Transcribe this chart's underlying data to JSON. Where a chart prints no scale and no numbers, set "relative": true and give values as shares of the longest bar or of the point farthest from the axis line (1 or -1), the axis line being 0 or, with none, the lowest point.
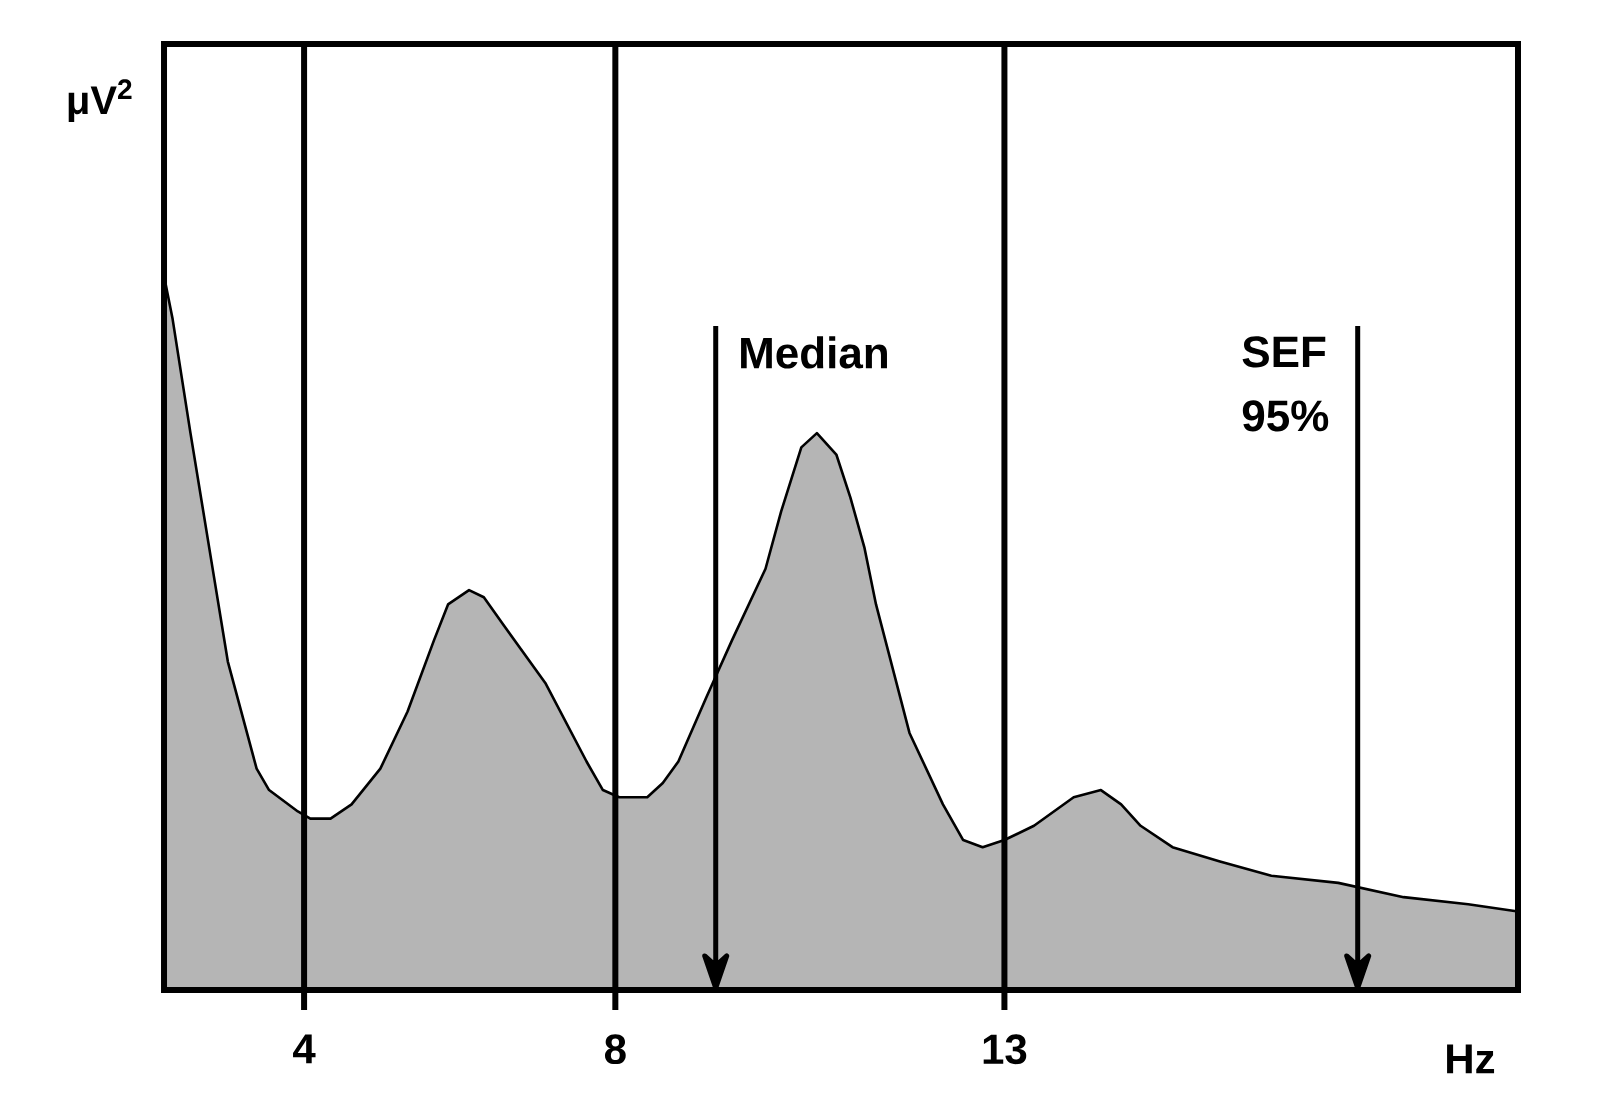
{
  "chart_data": {
    "type": "area",
    "relative": true,
    "xlabel": "Hz",
    "ylabel": "μV$^{2}$",
    "x": [
      2.2,
      2.31,
      2.54,
      2.81,
      3.02,
      3.39,
      3.55,
      3.92,
      4.08,
      4.34,
      4.61,
      4.98,
      5.33,
      5.67,
      5.85,
      6.12,
      6.31,
      6.57,
      7.1,
      7.63,
      7.84,
      8.05,
      8.41,
      8.61,
      8.81,
      9.17,
      9.5,
      9.93,
      10.13,
      10.39,
      10.59,
      10.84,
      11.02,
      11.2,
      11.35,
      11.78,
      12.21,
      12.47,
      12.72,
      13.0,
      13.38,
      13.89,
      14.24,
      14.5,
      14.75,
      15.16,
      15.77,
      16.43,
      17.29,
      18.13,
      18.96,
      19.6
    ],
    "values": [
      1.0,
      0.94,
      0.78,
      0.6,
      0.46,
      0.31,
      0.28,
      0.25,
      0.24,
      0.24,
      0.26,
      0.31,
      0.39,
      0.49,
      0.54,
      0.56,
      0.55,
      0.51,
      0.43,
      0.32,
      0.28,
      0.27,
      0.27,
      0.29,
      0.32,
      0.41,
      0.49,
      0.59,
      0.67,
      0.76,
      0.78,
      0.75,
      0.69,
      0.62,
      0.54,
      0.36,
      0.26,
      0.21,
      0.2,
      0.21,
      0.23,
      0.27,
      0.28,
      0.26,
      0.23,
      0.2,
      0.18,
      0.16,
      0.15,
      0.13,
      0.12,
      0.11
    ],
    "color": "#b5b5b5",
    "xlim": [
      2.2,
      19.6
    ],
    "xticks": [
      4,
      8,
      13
    ],
    "ref_lines": [
      {
        "axis": "x",
        "value": 4
      },
      {
        "axis": "x",
        "value": 8
      },
      {
        "axis": "x",
        "value": 13
      },
      {
        "axis": "x",
        "value": 9.29,
        "label": "Median"
      },
      {
        "axis": "x",
        "value": 17.54,
        "label": "SEF 95%"
      }
    ]
  }
}
